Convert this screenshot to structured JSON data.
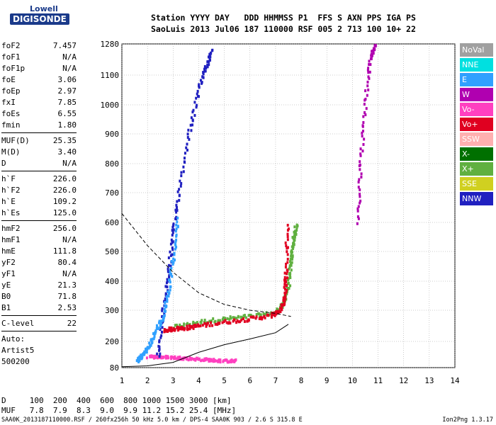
{
  "logo": {
    "top": "Lowell",
    "bottom": "DIGISONDE"
  },
  "header": {
    "line1": "Station YYYY DAY   DDD HHMMSS P1  FFS S AXN PPS IGA PS",
    "line2": "SaoLuis 2013 Jul06 187 110000 RSF 005 2 713 100 10+ 22"
  },
  "params": {
    "group1": [
      {
        "label": "foF2",
        "value": "7.457"
      },
      {
        "label": "foF1",
        "value": "N/A"
      },
      {
        "label": "foF1p",
        "value": "N/A"
      },
      {
        "label": "foE",
        "value": "3.06"
      },
      {
        "label": "foEp",
        "value": "2.97"
      },
      {
        "label": "fxI",
        "value": "7.85"
      },
      {
        "label": "foEs",
        "value": "6.55"
      },
      {
        "label": "fmin",
        "value": "1.80"
      }
    ],
    "group2": [
      {
        "label": "MUF(D)",
        "value": "25.35"
      },
      {
        "label": "M(D)",
        "value": "3.40"
      },
      {
        "label": "D",
        "value": "N/A"
      }
    ],
    "group3": [
      {
        "label": "h`F",
        "value": "226.0"
      },
      {
        "label": "h`F2",
        "value": "226.0"
      },
      {
        "label": "h`E",
        "value": "109.2"
      },
      {
        "label": "h`Es",
        "value": "125.0"
      }
    ],
    "group4": [
      {
        "label": "hmF2",
        "value": "256.0"
      },
      {
        "label": "hmF1",
        "value": "N/A"
      },
      {
        "label": "hmE",
        "value": "111.8"
      },
      {
        "label": "yF2",
        "value": "80.4"
      },
      {
        "label": "yF1",
        "value": "N/A"
      },
      {
        "label": "yE",
        "value": "21.3"
      },
      {
        "label": "B0",
        "value": "71.8"
      },
      {
        "label": "B1",
        "value": "2.53"
      }
    ],
    "group5": [
      {
        "label": "C-level",
        "value": "22"
      }
    ],
    "auto": [
      "Auto:",
      "Artist5",
      "500200"
    ]
  },
  "legend": [
    {
      "label": "NoVal",
      "color": "#a0a0a0"
    },
    {
      "label": "NNE",
      "color": "#00e0e0"
    },
    {
      "label": "E",
      "color": "#30a0ff"
    },
    {
      "label": "W",
      "color": "#b000b0"
    },
    {
      "label": "Vo-",
      "color": "#ff40c0"
    },
    {
      "label": "Vo+",
      "color": "#e00020"
    },
    {
      "label": "SSW",
      "color": "#ffb0b0"
    },
    {
      "label": "X-",
      "color": "#007000"
    },
    {
      "label": "X+",
      "color": "#60b040"
    },
    {
      "label": "SSE",
      "color": "#d0d020"
    },
    {
      "label": "NNW",
      "color": "#2020c0"
    }
  ],
  "bottom": {
    "d_row": "D     100  200  400  600  800 1000 1500 3000 [km]",
    "muf_row": "MUF   7.8  7.9  8.3  9.0  9.9 11.2 15.2 25.4 [MHz]"
  },
  "footer": {
    "left": "SAA0K_2013187110000.RSF / 260fx256h 50 kHz 5.0 km / DPS-4 SAA0K 903 / 2.6 S 315.8 E",
    "right": "Ion2Png 1.3.17"
  },
  "chart_data": {
    "type": "scatter",
    "title": "",
    "xlabel": "",
    "ylabel": "",
    "xlim": [
      1,
      14
    ],
    "ylim": [
      80,
      1280
    ],
    "x_ticks": [
      1,
      2,
      3,
      4,
      5,
      6,
      7,
      8,
      9,
      10,
      11,
      12,
      13,
      14
    ],
    "y_ticks": [
      80,
      200,
      300,
      400,
      500,
      600,
      700,
      800,
      900,
      1000,
      1100,
      1280
    ],
    "grid": true,
    "series": [
      {
        "name": "X+",
        "color": "#60b040",
        "style": "trace",
        "points": [
          [
            3.0,
            245
          ],
          [
            4,
            262
          ],
          [
            5,
            272
          ],
          [
            6,
            280
          ],
          [
            7,
            292
          ],
          [
            7.3,
            320
          ],
          [
            7.5,
            390
          ],
          [
            7.6,
            470
          ],
          [
            7.7,
            540
          ],
          [
            7.8,
            590
          ]
        ]
      },
      {
        "name": "Vo+",
        "color": "#e00020",
        "style": "trace",
        "points": [
          [
            2.6,
            235
          ],
          [
            3,
            240
          ],
          [
            3.5,
            243
          ],
          [
            4,
            250
          ],
          [
            5,
            262
          ],
          [
            6,
            272
          ],
          [
            6.8,
            282
          ],
          [
            7.2,
            300
          ],
          [
            7.35,
            350
          ],
          [
            7.4,
            430
          ],
          [
            7.45,
            600
          ]
        ]
      },
      {
        "name": "Vo-",
        "color": "#ff40c0",
        "style": "trace",
        "points": [
          [
            2,
            130
          ],
          [
            2.5,
            128
          ],
          [
            3,
            126
          ],
          [
            3.5,
            122
          ],
          [
            4,
            118
          ],
          [
            4.5,
            114
          ],
          [
            5,
            110
          ],
          [
            5.5,
            110
          ]
        ]
      },
      {
        "name": "NNW",
        "color": "#2020c0",
        "style": "trace",
        "points": [
          [
            2.4,
            130
          ],
          [
            2.6,
            290
          ],
          [
            2.8,
            420
          ],
          [
            3.0,
            560
          ],
          [
            3.2,
            700
          ],
          [
            3.6,
            900
          ],
          [
            4.0,
            1050
          ],
          [
            4.3,
            1150
          ],
          [
            4.5,
            1250
          ]
        ]
      },
      {
        "name": "E",
        "color": "#30a0ff",
        "style": "trace",
        "points": [
          [
            1.6,
            110
          ],
          [
            1.8,
            135
          ],
          [
            2.0,
            170
          ],
          [
            2.3,
            230
          ],
          [
            2.6,
            280
          ],
          [
            2.8,
            360
          ],
          [
            3.0,
            480
          ],
          [
            3.2,
            620
          ]
        ]
      },
      {
        "name": "W",
        "color": "#b000b0",
        "style": "trace",
        "points": [
          [
            10.2,
            600
          ],
          [
            10.3,
            800
          ],
          [
            10.5,
            1000
          ],
          [
            10.7,
            1200
          ],
          [
            10.9,
            1280
          ]
        ]
      }
    ],
    "profile_curve": [
      [
        1,
        84
      ],
      [
        2,
        88
      ],
      [
        3,
        104
      ],
      [
        4,
        150
      ],
      [
        5,
        185
      ],
      [
        6,
        208
      ],
      [
        7,
        228
      ],
      [
        7.5,
        255
      ]
    ],
    "dashed_curve": [
      [
        1,
        630
      ],
      [
        2,
        520
      ],
      [
        3,
        430
      ],
      [
        4,
        360
      ],
      [
        5,
        320
      ],
      [
        6,
        300
      ],
      [
        7,
        290
      ],
      [
        7.6,
        280
      ]
    ]
  }
}
